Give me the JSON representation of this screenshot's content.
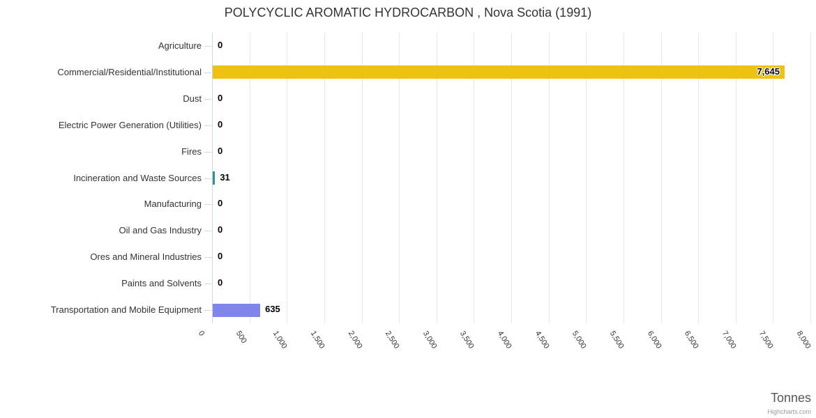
{
  "chart_data": {
    "type": "bar",
    "title": "POLYCYCLIC AROMATIC HYDROCARBON , Nova Scotia (1991)",
    "xlabel": "Tonnes",
    "categories": [
      "Agriculture",
      "Commercial/Residential/Institutional",
      "Dust",
      "Electric Power Generation (Utilities)",
      "Fires",
      "Incineration and Waste Sources",
      "Manufacturing",
      "Oil and Gas Industry",
      "Ores and Mineral Industries",
      "Paints and Solvents",
      "Transportation and Mobile Equipment"
    ],
    "values": [
      0,
      7645,
      0,
      0,
      0,
      31,
      0,
      0,
      0,
      0,
      635
    ],
    "value_labels": [
      "0",
      "7,645",
      "0",
      "0",
      "0",
      "31",
      "0",
      "0",
      "0",
      "0",
      "635"
    ],
    "bar_colors": [
      null,
      "#EDC213",
      null,
      null,
      null,
      "#2B908F",
      null,
      null,
      null,
      null,
      "#8085E9"
    ],
    "value_axis": {
      "min": 0,
      "max": 8000,
      "tick_interval": 500,
      "tick_labels": [
        "0",
        "500",
        "1,000",
        "1,500",
        "2,000",
        "2,500",
        "3,000",
        "3,500",
        "4,000",
        "4,500",
        "5,000",
        "5,500",
        "6,000",
        "6,500",
        "7,000",
        "7,500",
        "8,000"
      ]
    },
    "legend": "none",
    "grid": "vertical"
  },
  "credits": "Highcharts.com",
  "colors": {
    "gridline": "#E6E6E6",
    "axis": "#CCD6EB",
    "label_text": "#333333",
    "data_label_text": "#000000"
  }
}
